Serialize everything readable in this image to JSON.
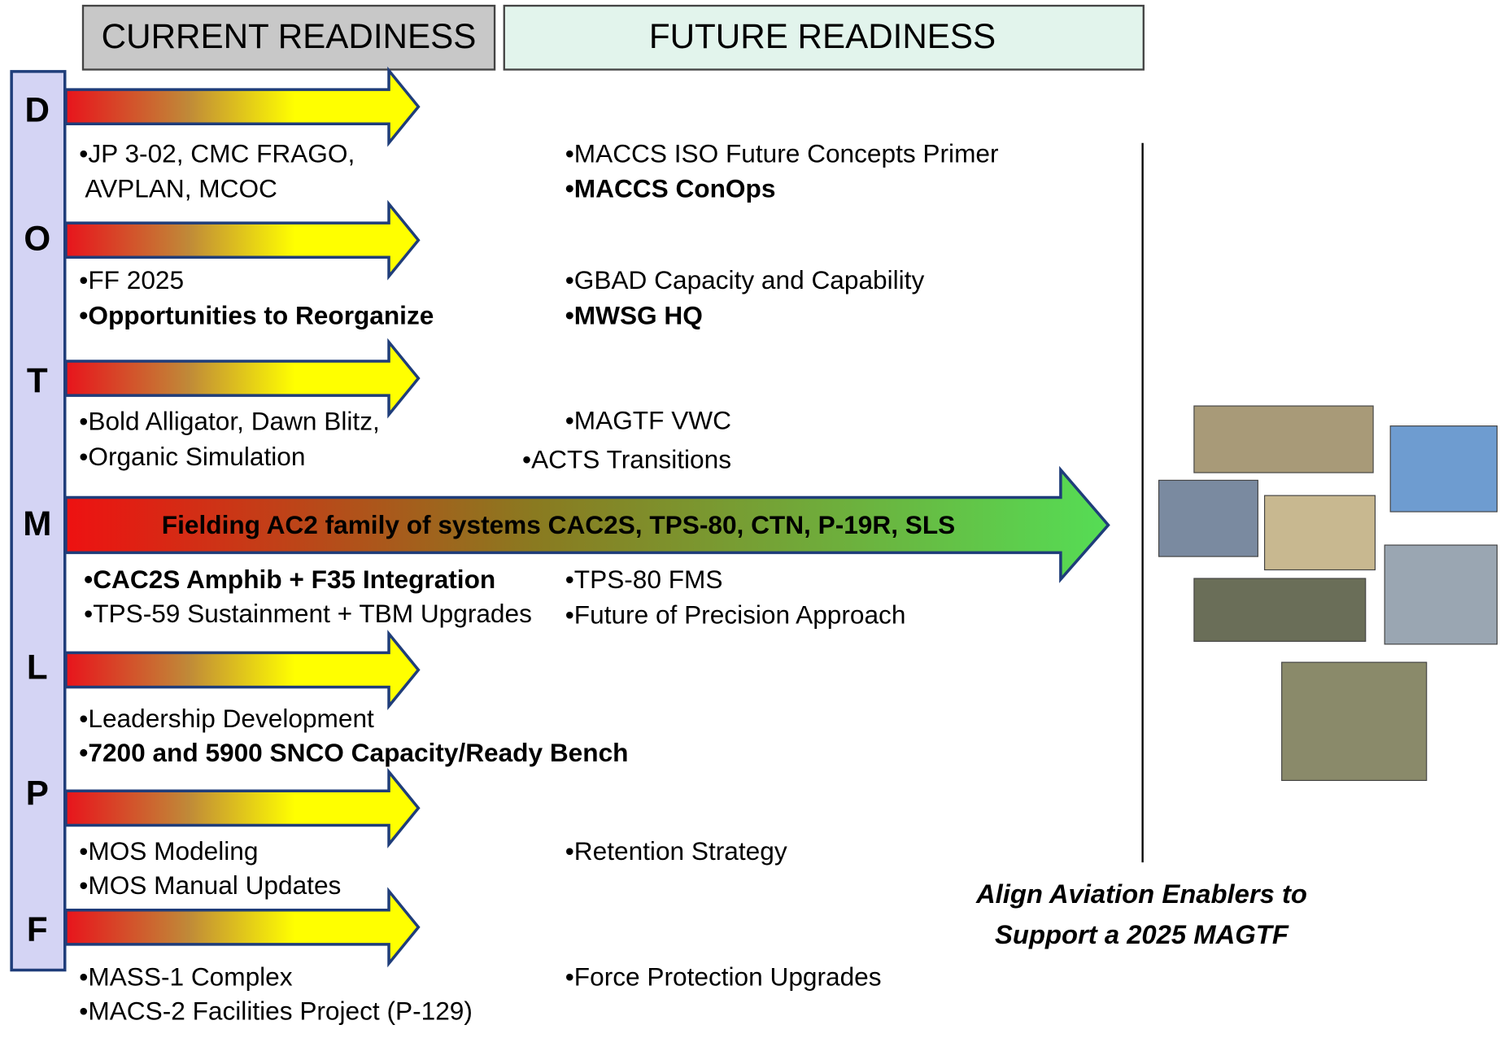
{
  "header": {
    "current": "CURRENT READINESS",
    "future": "FUTURE READINESS"
  },
  "rows": [
    {
      "letter": "D",
      "current": [
        {
          "text": "•JP 3-02, CMC FRAGO,",
          "bold": false
        },
        {
          "text": "AVPLAN,  MCOC",
          "bold": false
        }
      ],
      "future": [
        {
          "text": "•MACCS ISO Future Concepts Primer",
          "bold": false
        },
        {
          "text": "•MACCS ConOps",
          "bold": true
        }
      ]
    },
    {
      "letter": "O",
      "current": [
        {
          "text": "•FF 2025",
          "bold": false
        },
        {
          "text": "•Opportunities to Reorganize",
          "bold": true
        }
      ],
      "future": [
        {
          "text": "•GBAD Capacity and Capability",
          "bold": false
        },
        {
          "text": "•MWSG HQ",
          "bold": true
        }
      ]
    },
    {
      "letter": "T",
      "current": [
        {
          "text": "•Bold Alligator, Dawn Blitz,",
          "bold": false
        },
        {
          "text": "•Organic Simulation",
          "bold": false
        }
      ],
      "future": [
        {
          "text": "•MAGTF VWC",
          "bold": false
        },
        {
          "text": "•ACTS Transitions",
          "bold": false
        }
      ]
    },
    {
      "letter": "M",
      "banner": "Fielding AC2 family of systems CAC2S, TPS-80, CTN, P-19R, SLS",
      "current": [
        {
          "text": "•CAC2S Amphib + F35 Integration",
          "bold": true
        },
        {
          "text": "•TPS-59 Sustainment + TBM Upgrades",
          "bold": false
        }
      ],
      "future": [
        {
          "text": "•TPS-80 FMS",
          "bold": false
        },
        {
          "text": "•Future of Precision Approach",
          "bold": false
        }
      ]
    },
    {
      "letter": "L",
      "current": [
        {
          "text": "•Leadership Development",
          "bold": false
        },
        {
          "text": "•7200 and 5900 SNCO Capacity/Ready Bench",
          "bold": true
        }
      ],
      "future": []
    },
    {
      "letter": "P",
      "current": [
        {
          "text": "•MOS Modeling",
          "bold": false
        },
        {
          "text": "•MOS Manual Updates",
          "bold": false
        }
      ],
      "future": [
        {
          "text": "•Retention Strategy",
          "bold": false
        }
      ]
    },
    {
      "letter": "F",
      "current": [
        {
          "text": "•MASS-1 Complex",
          "bold": false
        },
        {
          "text": "•MACS-2 Facilities Project (P-129)",
          "bold": false
        }
      ],
      "future": [
        {
          "text": "•Force Protection Upgrades",
          "bold": false
        }
      ]
    }
  ],
  "caption": [
    "Align Aviation Enablers to",
    "Support a 2025 MAGTF"
  ]
}
